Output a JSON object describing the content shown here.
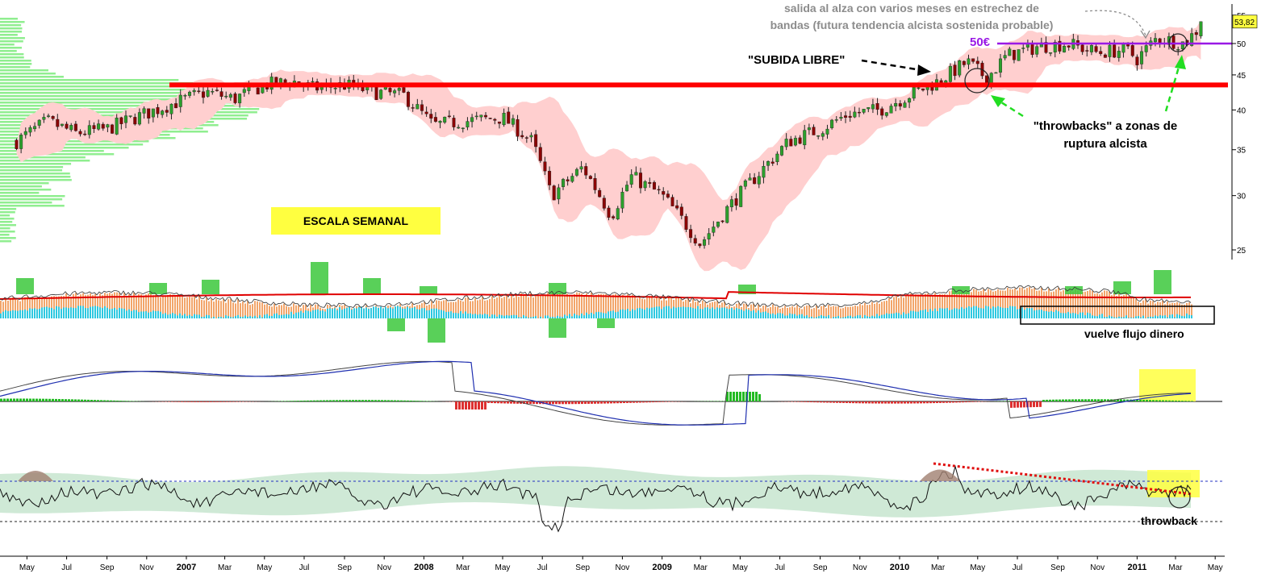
{
  "chart_data": {
    "type": "candlestick",
    "timeframe_label": "ESCALA SEMANAL",
    "x_axis_labels": [
      "May",
      "Jul",
      "Sep",
      "Nov",
      "2007",
      "Mar",
      "May",
      "Jul",
      "Sep",
      "Nov",
      "2008",
      "Mar",
      "May",
      "Jul",
      "Sep",
      "Nov",
      "2009",
      "Mar",
      "May",
      "Jul",
      "Sep",
      "Nov",
      "2010",
      "Mar",
      "May",
      "Jul",
      "Sep",
      "Nov",
      "2011",
      "Mar",
      "May"
    ],
    "x_axis_bold": [
      "2007",
      "2008",
      "2009",
      "2010",
      "2011"
    ],
    "y_axis_ticks": [
      25,
      30,
      35,
      40,
      45,
      50,
      55
    ],
    "y_scale": "log",
    "y_range": [
      24,
      56
    ],
    "last_price": "53,82",
    "price_path": [
      {
        "date": "2006-04-15",
        "close": 36.0
      },
      {
        "date": "2006-06-01",
        "close": 38.5
      },
      {
        "date": "2006-07-15",
        "close": 37.0
      },
      {
        "date": "2006-09-01",
        "close": 37.5
      },
      {
        "date": "2006-10-15",
        "close": 39.0
      },
      {
        "date": "2006-12-15",
        "close": 41.0
      },
      {
        "date": "2007-02-01",
        "close": 42.5
      },
      {
        "date": "2007-03-15",
        "close": 41.5
      },
      {
        "date": "2007-05-01",
        "close": 43.5
      },
      {
        "date": "2007-06-15",
        "close": 44.0
      },
      {
        "date": "2007-07-15",
        "close": 43.0
      },
      {
        "date": "2007-09-01",
        "close": 43.5
      },
      {
        "date": "2007-10-15",
        "close": 42.5
      },
      {
        "date": "2007-12-01",
        "close": 42.0
      },
      {
        "date": "2008-01-15",
        "close": 38.0
      },
      {
        "date": "2008-03-01",
        "close": 38.5
      },
      {
        "date": "2008-05-01",
        "close": 39.0
      },
      {
        "date": "2008-06-15",
        "close": 36.0
      },
      {
        "date": "2008-07-15",
        "close": 30.0
      },
      {
        "date": "2008-09-01",
        "close": 33.0
      },
      {
        "date": "2008-10-15",
        "close": 28.0
      },
      {
        "date": "2008-11-15",
        "close": 32.0
      },
      {
        "date": "2009-01-01",
        "close": 30.0
      },
      {
        "date": "2009-03-01",
        "close": 25.5
      },
      {
        "date": "2009-04-15",
        "close": 29.0
      },
      {
        "date": "2009-06-01",
        "close": 32.5
      },
      {
        "date": "2009-07-15",
        "close": 36.0
      },
      {
        "date": "2009-09-01",
        "close": 37.5
      },
      {
        "date": "2009-10-15",
        "close": 39.5
      },
      {
        "date": "2009-12-01",
        "close": 40.0
      },
      {
        "date": "2010-01-15",
        "close": 42.0
      },
      {
        "date": "2010-03-01",
        "close": 44.0
      },
      {
        "date": "2010-04-15",
        "close": 47.0
      },
      {
        "date": "2010-05-15",
        "close": 44.5
      },
      {
        "date": "2010-06-15",
        "close": 48.0
      },
      {
        "date": "2010-08-01",
        "close": 49.5
      },
      {
        "date": "2010-09-15",
        "close": 50.0
      },
      {
        "date": "2010-11-01",
        "close": 48.5
      },
      {
        "date": "2010-12-15",
        "close": 49.0
      },
      {
        "date": "2011-01-01",
        "close": 47.5
      },
      {
        "date": "2011-02-01",
        "close": 51.0
      },
      {
        "date": "2011-03-15",
        "close": 50.0
      },
      {
        "date": "2011-04-15",
        "close": 53.82
      }
    ],
    "horizontal_levels": [
      {
        "name": "red-resistance-line",
        "value": 43.5,
        "color": "#ff0000"
      },
      {
        "name": "purple-50-line",
        "value": 50.0,
        "color": "#9a19e6",
        "label": "50€"
      }
    ],
    "colors": {
      "up_candle": "#2ca02c",
      "down_candle": "#8b0000",
      "band_fill": "#ffcfcf",
      "volume_profile": "#90ee90",
      "highlight": "#ffff40",
      "trendline": "#e01010"
    }
  },
  "annotations": {
    "salida_line1": "salida al alza con varios meses en estrechez de",
    "salida_line2": "bandas (futura tendencia alcista sostenida probable)",
    "subida_libre": "\"SUBIDA LIBRE\"",
    "level_50": "50€",
    "throwbacks_line1": "\"throwbacks\" a zonas de",
    "throwbacks_line2": "ruptura alcista",
    "escala_semanal": "ESCALA SEMANAL",
    "vuelve_flujo": "vuelve flujo dinero",
    "throwback": "throwback"
  }
}
